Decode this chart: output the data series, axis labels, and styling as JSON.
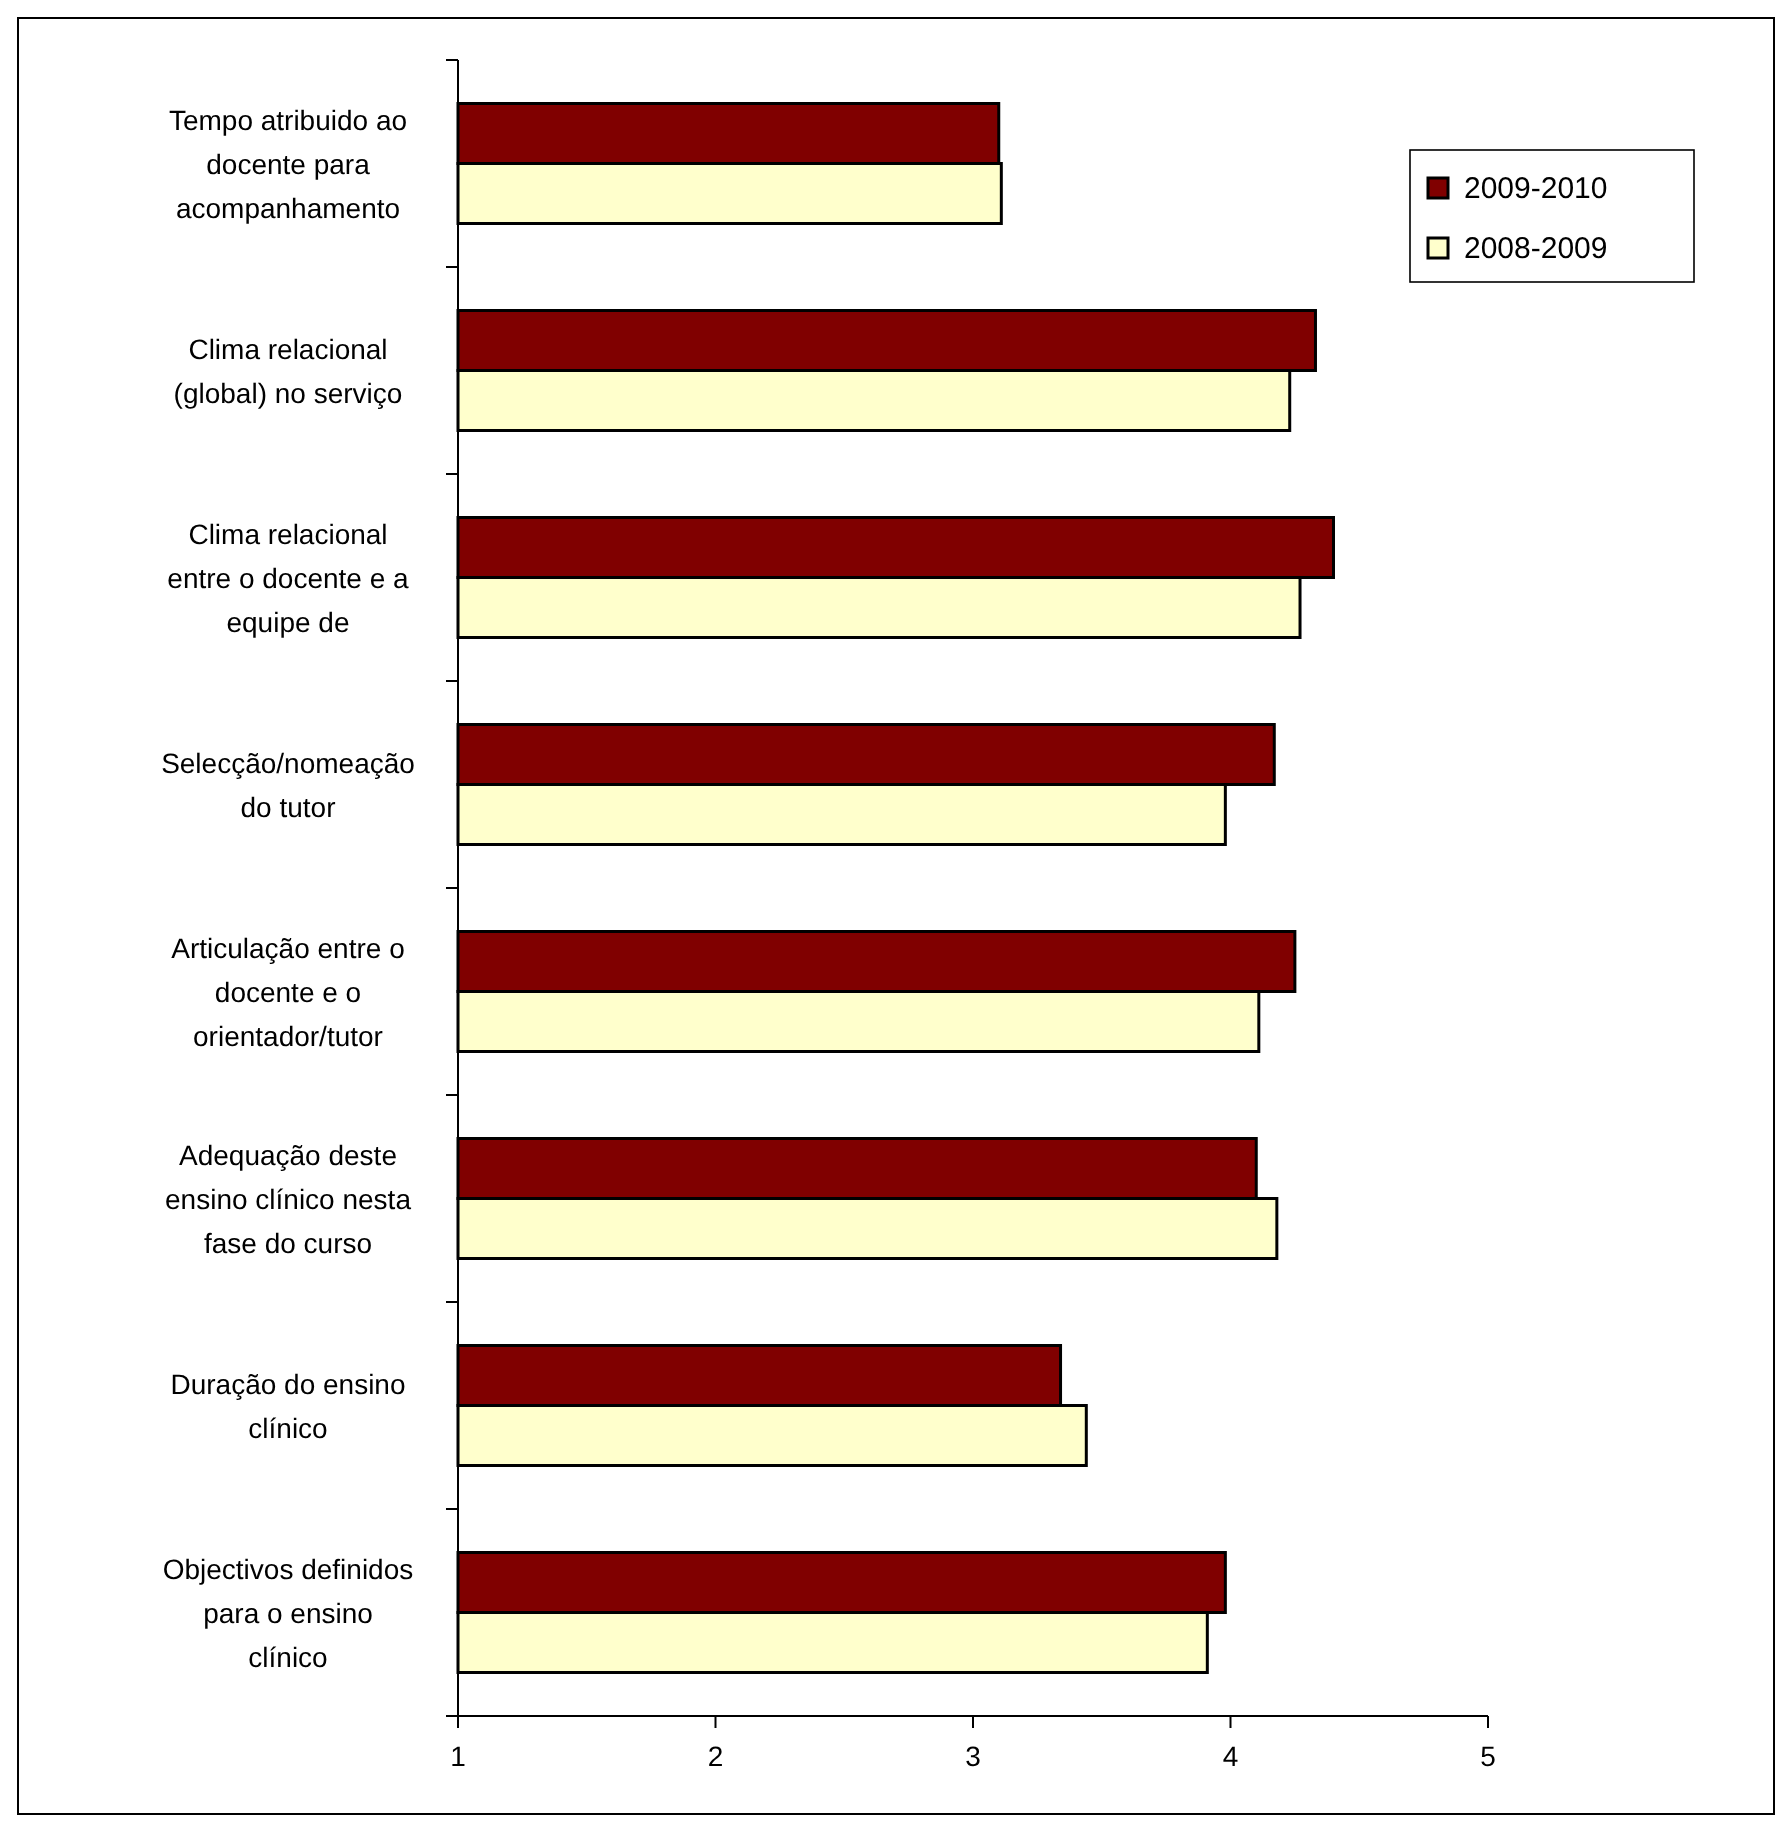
{
  "chart_data": {
    "type": "bar",
    "orientation": "horizontal",
    "categories": [
      "Tempo atribuido ao\ndocente para\nacompanhamento",
      "Clima relacional\n(global) no serviço",
      "Clima relacional\nentre o docente e a\nequipe de",
      "Selecção/nomeação\ndo tutor",
      "Articulação entre o\ndocente e o\norientador/tutor",
      "Adequação deste\nensino clínico nesta\nfase do curso",
      "Duração do ensino\nclínico",
      "Objectivos definidos\npara o ensino\nclínico"
    ],
    "series": [
      {
        "name": "2009-2010",
        "color": "#800000",
        "values": [
          3.1,
          4.33,
          4.4,
          4.17,
          4.25,
          4.1,
          3.34,
          3.98
        ]
      },
      {
        "name": "2008-2009",
        "color": "#ffffcc",
        "values": [
          3.11,
          4.23,
          4.27,
          3.98,
          4.11,
          4.18,
          3.44,
          3.91
        ]
      }
    ],
    "xlim": [
      1,
      5
    ],
    "xticks": [
      1,
      2,
      3,
      4,
      5
    ],
    "grid": false,
    "legend": "top right"
  }
}
